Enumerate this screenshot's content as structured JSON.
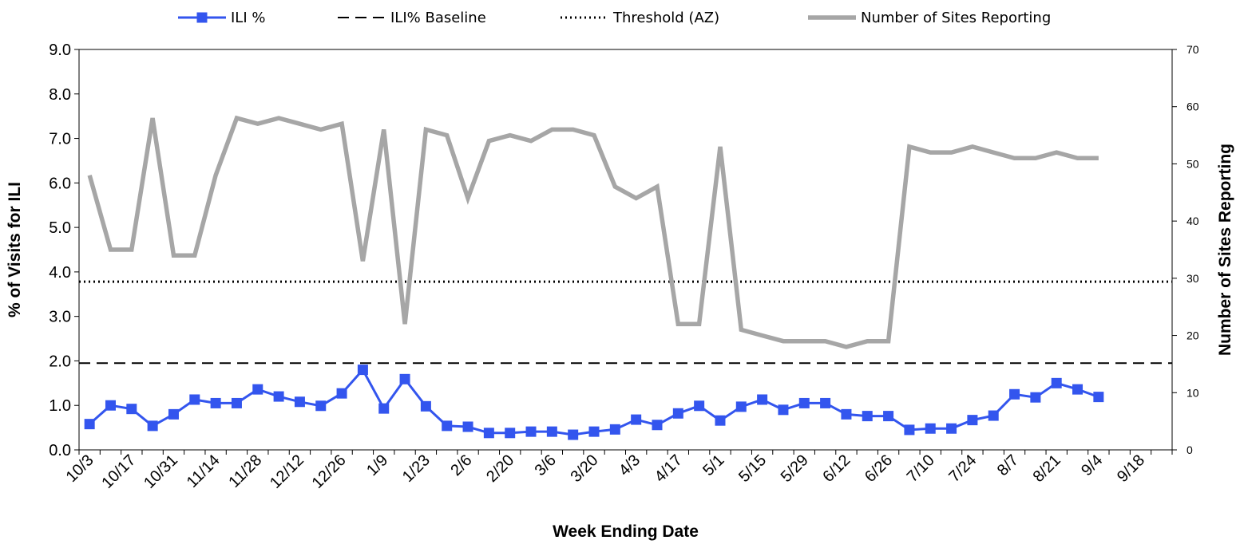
{
  "chart_data": {
    "type": "line",
    "xlabel": "Week Ending Date",
    "ylabel_left": "% of Visits for ILI",
    "ylabel_right": "Number of Sites Reporting",
    "ylim_left": [
      0,
      9
    ],
    "ylim_right": [
      0,
      70
    ],
    "yticks_left": [
      "0.0",
      "1.0",
      "2.0",
      "3.0",
      "4.0",
      "5.0",
      "6.0",
      "7.0",
      "8.0",
      "9.0"
    ],
    "yticks_right": [
      "0",
      "10",
      "20",
      "30",
      "40",
      "50",
      "60",
      "70"
    ],
    "x_tick_labels": [
      "10/3",
      "10/17",
      "10/31",
      "11/14",
      "11/28",
      "12/12",
      "12/26",
      "1/9",
      "1/23",
      "2/6",
      "2/20",
      "3/6",
      "3/20",
      "4/3",
      "4/17",
      "5/1",
      "5/15",
      "5/29",
      "6/12",
      "6/26",
      "7/10",
      "7/24",
      "8/7",
      "8/21",
      "9/4",
      "9/18"
    ],
    "x_weeks": [
      "10/3",
      "10/10",
      "10/17",
      "10/24",
      "10/31",
      "11/7",
      "11/14",
      "11/21",
      "11/28",
      "12/5",
      "12/12",
      "12/19",
      "12/26",
      "1/2",
      "1/9",
      "1/16",
      "1/23",
      "1/30",
      "2/6",
      "2/13",
      "2/20",
      "2/27",
      "3/6",
      "3/13",
      "3/20",
      "3/27",
      "4/3",
      "4/10",
      "4/17",
      "4/24",
      "5/1",
      "5/8",
      "5/15",
      "5/22",
      "5/29",
      "6/5",
      "6/12",
      "6/19",
      "6/26",
      "7/3",
      "7/10",
      "7/17",
      "7/24",
      "7/31",
      "8/7",
      "8/14",
      "8/21",
      "8/28",
      "9/4",
      "9/11",
      "9/18",
      "9/25"
    ],
    "legend_position": "top",
    "series": [
      {
        "name": "ILI %",
        "axis": "left",
        "style": "solid-with-square-markers",
        "color": "#3355ee",
        "values": [
          0.58,
          1.0,
          0.92,
          0.54,
          0.8,
          1.13,
          1.05,
          1.05,
          1.36,
          1.2,
          1.08,
          0.99,
          1.27,
          1.8,
          0.93,
          1.59,
          0.98,
          0.54,
          0.52,
          0.38,
          0.38,
          0.41,
          0.41,
          0.34,
          0.41,
          0.46,
          0.68,
          0.56,
          0.82,
          0.99,
          0.66,
          0.97,
          1.13,
          0.9,
          1.05,
          1.05,
          0.8,
          0.76,
          0.76,
          0.45,
          0.48,
          0.48,
          0.67,
          0.77,
          1.25,
          1.18,
          1.5,
          1.36,
          1.19
        ]
      },
      {
        "name": "ILI% Baseline",
        "axis": "left",
        "style": "dashed",
        "color": "#000000",
        "constant": 1.95
      },
      {
        "name": "Threshold (AZ)",
        "axis": "left",
        "style": "dotted",
        "color": "#000000",
        "constant": 3.78
      },
      {
        "name": "Number of Sites Reporting",
        "axis": "right",
        "style": "solid-thick",
        "color": "#a6a6a6",
        "values": [
          48,
          35,
          35,
          58,
          34,
          34,
          48,
          58,
          57,
          58,
          57,
          56,
          57,
          33,
          56,
          22,
          56,
          55,
          44,
          54,
          55,
          54,
          56,
          56,
          55,
          46,
          44,
          46,
          22,
          22,
          53,
          21,
          20,
          19,
          19,
          19,
          18,
          19,
          19,
          53,
          52,
          52,
          53,
          52,
          51,
          51,
          52,
          51,
          51
        ]
      }
    ]
  }
}
